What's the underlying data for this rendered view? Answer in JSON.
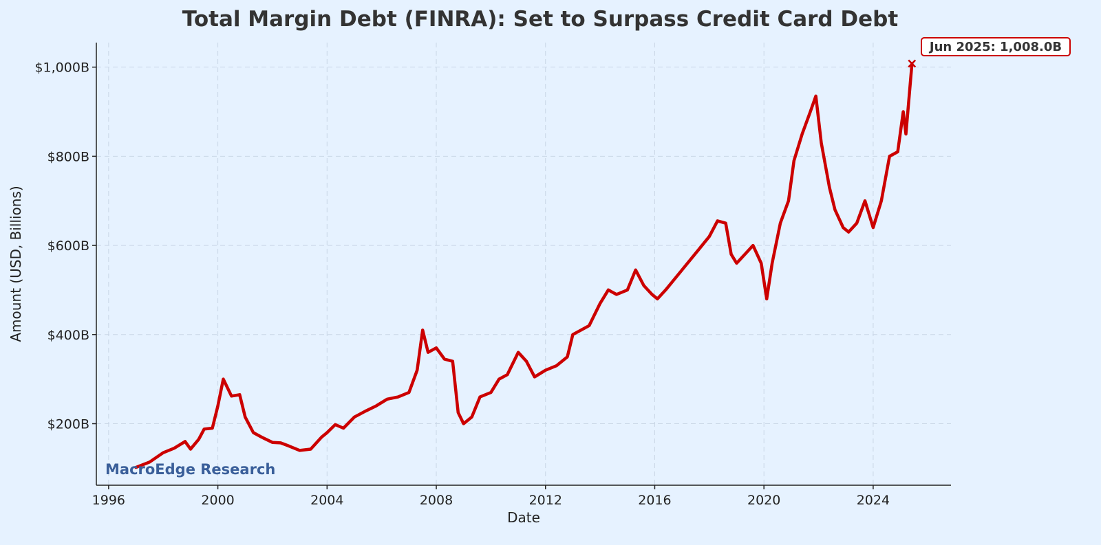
{
  "chart_data": {
    "type": "line",
    "title": "Total Margin Debt (FINRA): Set to Surpass Credit Card Debt",
    "xlabel": "Date",
    "ylabel": "Amount (USD, Billions)",
    "xlim": [
      1995.55,
      2026.85
    ],
    "ylim": [
      62,
      1055
    ],
    "x_ticks": [
      1996,
      2000,
      2004,
      2008,
      2012,
      2016,
      2020,
      2024
    ],
    "y_ticks": [
      200,
      400,
      600,
      800,
      1000
    ],
    "y_tick_labels": [
      "$200B",
      "$400B",
      "$600B",
      "$800B",
      "$1,000B"
    ],
    "grid": true,
    "line_color": "#cc0000",
    "watermark": "MacroEdge Research",
    "watermark_color": "#3a5f9a",
    "annotation": {
      "label": "Jun 2025: 1,008.0B",
      "x": 2025.42,
      "y": 1008.0
    },
    "series": [
      {
        "x": [
          1997.0,
          1997.5,
          1998.0,
          1998.4,
          1998.8,
          1999.0,
          1999.3,
          1999.5,
          1999.8,
          2000.0,
          2000.2,
          2000.5,
          2000.8,
          2001.0,
          2001.3,
          2001.6,
          2002.0,
          2002.3,
          2002.6,
          2003.0,
          2003.4,
          2003.8,
          2004.0,
          2004.3,
          2004.6,
          2005.0,
          2005.4,
          2005.8,
          2006.2,
          2006.6,
          2007.0,
          2007.3,
          2007.5,
          2007.7,
          2008.0,
          2008.3,
          2008.6,
          2008.8,
          2009.0,
          2009.3,
          2009.6,
          2010.0,
          2010.3,
          2010.6,
          2011.0,
          2011.3,
          2011.6,
          2012.0,
          2012.4,
          2012.8,
          2013.0,
          2013.3,
          2013.6,
          2014.0,
          2014.3,
          2014.6,
          2015.0,
          2015.3,
          2015.6,
          2015.9,
          2016.1,
          2016.4,
          2016.8,
          2017.2,
          2017.6,
          2018.0,
          2018.3,
          2018.6,
          2018.8,
          2019.0,
          2019.3,
          2019.6,
          2019.9,
          2020.1,
          2020.3,
          2020.6,
          2020.9,
          2021.1,
          2021.4,
          2021.7,
          2021.9,
          2022.1,
          2022.4,
          2022.6,
          2022.9,
          2023.1,
          2023.4,
          2023.7,
          2024.0,
          2024.3,
          2024.6,
          2024.9,
          2025.1,
          2025.2,
          2025.42
        ],
        "y": [
          102,
          114,
          135,
          145,
          160,
          143,
          165,
          188,
          190,
          240,
          300,
          262,
          265,
          215,
          180,
          170,
          158,
          157,
          150,
          140,
          143,
          170,
          180,
          198,
          190,
          215,
          228,
          240,
          255,
          260,
          270,
          320,
          410,
          360,
          370,
          345,
          340,
          225,
          200,
          215,
          260,
          270,
          300,
          310,
          360,
          340,
          305,
          320,
          330,
          350,
          400,
          410,
          420,
          470,
          500,
          490,
          500,
          545,
          510,
          490,
          480,
          500,
          530,
          560,
          590,
          620,
          655,
          650,
          580,
          560,
          580,
          600,
          560,
          480,
          560,
          650,
          700,
          790,
          850,
          900,
          935,
          830,
          730,
          680,
          640,
          630,
          650,
          700,
          640,
          700,
          800,
          810,
          900,
          850,
          1008
        ]
      }
    ]
  }
}
